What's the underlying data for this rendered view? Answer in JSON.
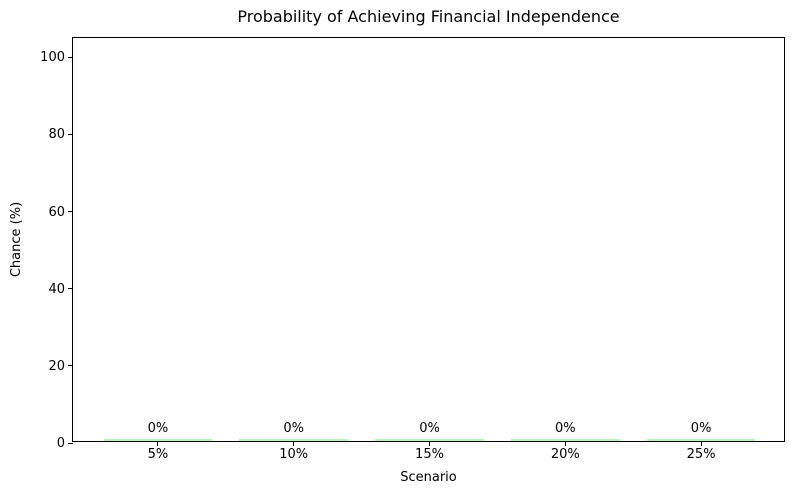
{
  "chart_data": {
    "type": "bar",
    "title": "Probability of Achieving Financial Independence",
    "xlabel": "Scenario",
    "ylabel": "Chance (%)",
    "categories": [
      "5%",
      "10%",
      "15%",
      "20%",
      "25%"
    ],
    "values": [
      0,
      0,
      0,
      0,
      0
    ],
    "bar_value_labels": [
      "0%",
      "0%",
      "0%",
      "0%",
      "0%"
    ],
    "yticks": [
      0,
      20,
      40,
      60,
      80,
      100
    ],
    "ytick_labels": [
      "0",
      "20",
      "40",
      "60",
      "80",
      "100"
    ],
    "ylim": [
      0,
      105
    ],
    "bar_color": "#90ee90",
    "axis_color": "#000000",
    "grid": false,
    "legend": "none"
  }
}
